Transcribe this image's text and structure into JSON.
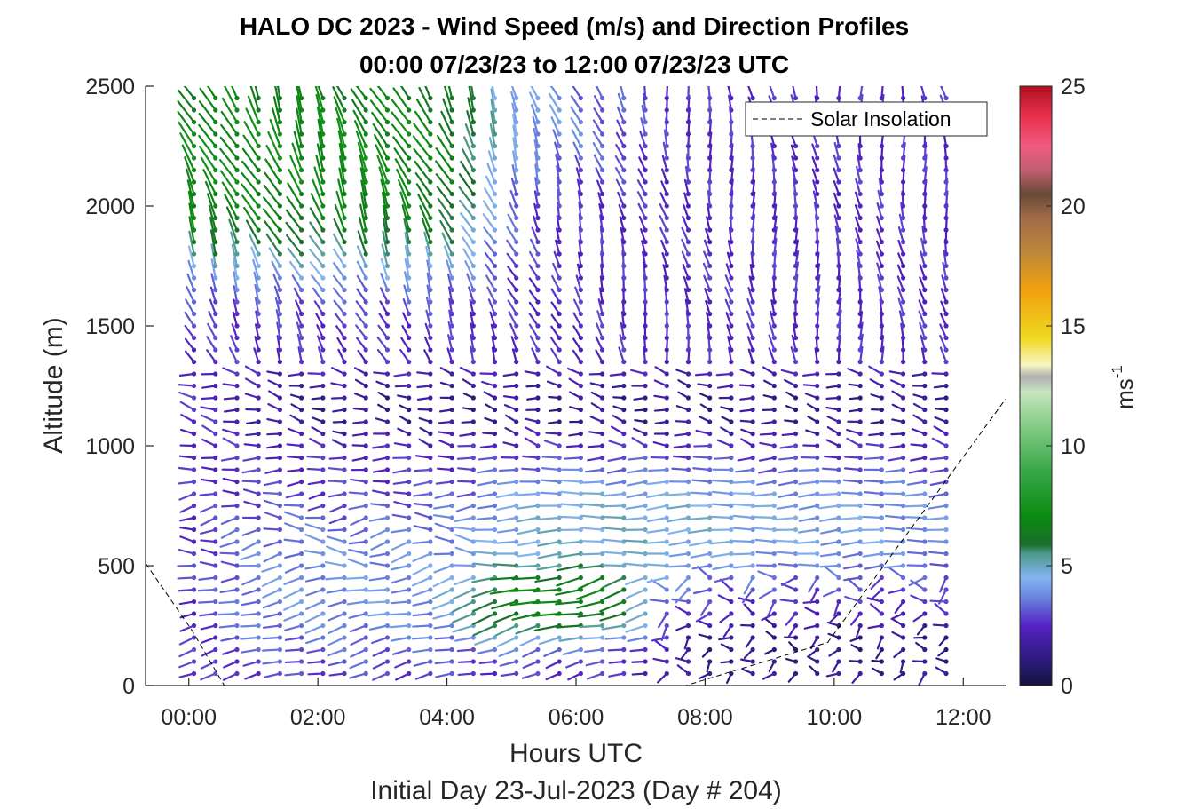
{
  "chart_data": {
    "type": "quiver",
    "title": "HALO DC 2023 - Wind Speed (m/s) and Direction Profiles",
    "subtitle": "00:00 07/23/23 to 12:00 07/23/23  UTC",
    "xlabel": "Hours UTC",
    "ylabel": "Altitude (m)",
    "footer": "Initial Day 23-Jul-2023 (Day # 204)",
    "xlim": [
      -0.67,
      12.67
    ],
    "ylim": [
      0,
      2500
    ],
    "x_ticks": [
      0,
      2,
      4,
      6,
      8,
      10,
      12
    ],
    "x_tick_labels": [
      "00:00",
      "02:00",
      "04:00",
      "06:00",
      "08:00",
      "10:00",
      "12:00"
    ],
    "y_ticks": [
      0,
      500,
      1000,
      1500,
      2000,
      2500
    ],
    "y_tick_labels": [
      "0",
      "500",
      "1000",
      "1500",
      "2000",
      "2500"
    ],
    "colorbar": {
      "label_base": "ms",
      "label_exp": "-1",
      "range": [
        0,
        25
      ],
      "ticks": [
        0,
        5,
        10,
        15,
        20,
        25
      ],
      "tick_labels": [
        "0",
        "5",
        "10",
        "15",
        "20",
        "25"
      ]
    },
    "legend": {
      "entry": "Solar Insolation",
      "location": "top-right"
    },
    "wind_field": {
      "time_start_hours": 0.08,
      "time_step_hours": 0.333,
      "time_count": 36,
      "altitude_start_m": 50,
      "altitude_step_m": 50,
      "altitude_count": 49,
      "description_regimes": [
        {
          "layer": "surface 0-250 m",
          "hours": "0-7.5",
          "speed_ms": "2-4",
          "direction": "westerly/southwesterly"
        },
        {
          "layer": "200-500 m",
          "hours": "4.5-7",
          "speed_ms": "6-8",
          "direction": "westerly"
        },
        {
          "layer": "500-900 m",
          "hours": "4.5-12",
          "speed_ms": "4-6",
          "direction": "westerly"
        },
        {
          "layer": "1000-1250 m",
          "hours": "1-12",
          "speed_ms": "1-3",
          "direction": "westerly"
        },
        {
          "layer": "1800-2500 m",
          "hours": "0-4.5",
          "speed_ms": "5-8",
          "direction": "northwesterly"
        },
        {
          "layer": "1300-2500 m",
          "hours": "4.5-12",
          "speed_ms": "2-4",
          "direction": "northwesterly"
        }
      ]
    },
    "solar_insolation": {
      "x_hours": [
        -0.67,
        0.05,
        0.55,
        7.7,
        9.9,
        12.67
      ],
      "y_m": [
        510,
        230,
        0,
        0,
        180,
        1200
      ]
    }
  }
}
